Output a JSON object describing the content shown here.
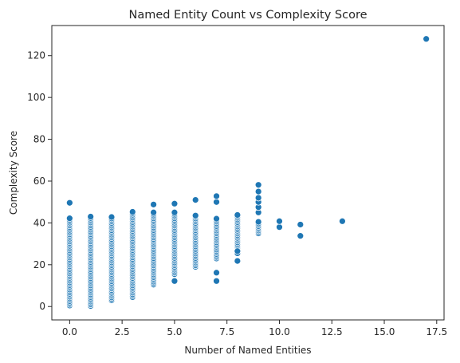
{
  "chart_data": {
    "type": "scatter",
    "title": "Named Entity Count vs Complexity Score",
    "xlabel": "Number of Named Entities",
    "ylabel": "Complexity Score",
    "xlim": [
      -0.85,
      17.85
    ],
    "ylim": [
      -6.4,
      134.4
    ],
    "xticks": [
      0.0,
      2.5,
      5.0,
      7.5,
      10.0,
      12.5,
      15.0,
      17.5
    ],
    "xtick_labels": [
      "0.0",
      "2.5",
      "5.0",
      "7.5",
      "10.0",
      "12.5",
      "15.0",
      "17.5"
    ],
    "yticks": [
      0,
      20,
      40,
      60,
      80,
      100,
      120
    ],
    "ytick_labels": [
      "0",
      "20",
      "40",
      "60",
      "80",
      "100",
      "120"
    ],
    "grid": false,
    "marker_color": "#1f77b4",
    "marker_edge_color": "#ffffff",
    "columns": [
      {
        "x": 0,
        "range": [
          0.5,
          42.2
        ],
        "extra": [
          49.6
        ]
      },
      {
        "x": 1,
        "range": [
          0.3,
          43.0
        ],
        "extra": []
      },
      {
        "x": 2,
        "range": [
          3.0,
          42.8
        ],
        "extra": []
      },
      {
        "x": 3,
        "range": [
          4.5,
          45.3
        ],
        "extra": []
      },
      {
        "x": 4,
        "range": [
          10.5,
          45.0
        ],
        "extra": [
          48.8
        ]
      },
      {
        "x": 5,
        "range": [
          15.5,
          45.0
        ],
        "extra": [
          12.2,
          49.2
        ]
      },
      {
        "x": 6,
        "range": [
          19.0,
          43.5
        ],
        "extra": [
          51.0
        ]
      },
      {
        "x": 7,
        "range": [
          23.0,
          42.0
        ],
        "extra": [
          12.2,
          16.2,
          50.0,
          52.8
        ]
      },
      {
        "x": 8,
        "range": [
          28.0,
          43.8
        ],
        "extra": [
          21.8,
          25.5,
          26.5
        ]
      },
      {
        "x": 9,
        "range": [
          35.0,
          40.5
        ],
        "extra": [
          45.0,
          47.5,
          50.0,
          52.0,
          55.0,
          58.2
        ]
      },
      {
        "x": 10,
        "range": null,
        "extra": [
          38.0,
          40.8
        ]
      },
      {
        "x": 11,
        "range": null,
        "extra": [
          33.8,
          39.2
        ]
      },
      {
        "x": 13,
        "range": null,
        "extra": [
          40.8
        ]
      },
      {
        "x": 17,
        "range": null,
        "extra": [
          128.0
        ]
      }
    ]
  }
}
